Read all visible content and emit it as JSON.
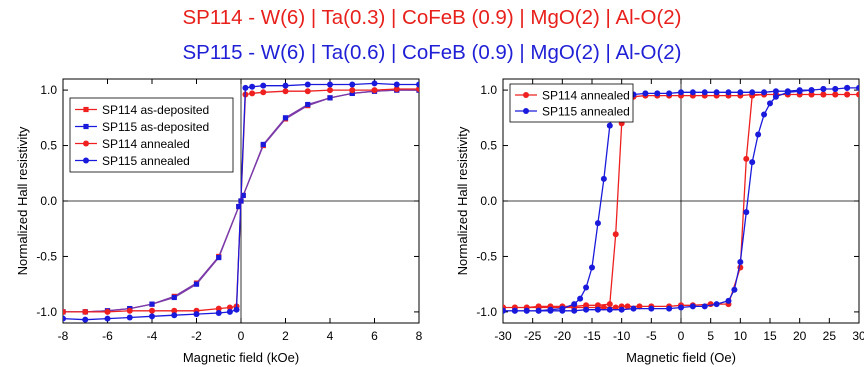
{
  "titles": {
    "line1": "SP114 - W(6) | Ta(0.3) | CoFeB (0.9) | MgO(2) | Al-O(2)",
    "line2": "SP115 - W(6) | Ta(0.6) | CoFeB (0.9) | MgO(2) | Al-O(2)"
  },
  "colors": {
    "red": "#ee2020",
    "blue": "#1a1adc",
    "purple": "#7b3aa8",
    "title_red": "#e8201c",
    "title_blue": "#1f1fd6"
  },
  "chart_data": [
    {
      "type": "line",
      "xlabel": "Magnetic field (kOe)",
      "ylabel": "Normalized Hall resistivity",
      "xlim": [
        -8,
        8
      ],
      "ylim": [
        -1.1,
        1.1
      ],
      "xticks": [
        -8,
        -6,
        -4,
        -2,
        0,
        2,
        4,
        6,
        8
      ],
      "xtick_labels": [
        "-8",
        "-6",
        "-4",
        "-2",
        "0",
        "2",
        "4",
        "6",
        "8"
      ],
      "yticks": [
        -1.0,
        -0.5,
        0.0,
        0.5,
        1.0
      ],
      "ytick_labels": [
        "-1.0",
        "-0.5",
        "0.0",
        "0.5",
        "1.0"
      ],
      "grid": false,
      "legend": "top-left",
      "series": [
        {
          "name": "SP114 as-deposited",
          "marker": "square",
          "color": "red",
          "x": [
            -8,
            -7,
            -6,
            -5,
            -4,
            -3,
            -2,
            -1,
            -0.1,
            0,
            0.1,
            1,
            2,
            3,
            4,
            5,
            6,
            7,
            8
          ],
          "y": [
            -1.0,
            -1.0,
            -0.99,
            -0.97,
            -0.93,
            -0.86,
            -0.74,
            -0.5,
            -0.05,
            0.0,
            0.05,
            0.5,
            0.74,
            0.86,
            0.93,
            0.97,
            0.99,
            1.0,
            1.0
          ]
        },
        {
          "name": "SP115 as-deposited",
          "marker": "square",
          "color": "blue",
          "x": [
            -8,
            -7,
            -6,
            -5,
            -4,
            -3,
            -2,
            -1,
            -0.1,
            0,
            0.1,
            1,
            2,
            3,
            4,
            5,
            6,
            7,
            8
          ],
          "y": [
            -1.0,
            -1.0,
            -0.99,
            -0.97,
            -0.93,
            -0.87,
            -0.75,
            -0.51,
            -0.05,
            0.0,
            0.05,
            0.51,
            0.75,
            0.87,
            0.93,
            0.97,
            0.99,
            1.0,
            1.0
          ]
        },
        {
          "name": "SP114 annealed",
          "marker": "circle",
          "color": "red",
          "x": [
            -8,
            -7,
            -6,
            -5,
            -4,
            -3,
            -2,
            -1,
            -0.5,
            -0.2,
            0.2,
            0.5,
            1,
            2,
            3,
            4,
            5,
            6,
            7,
            8
          ],
          "y": [
            -1.0,
            -1.0,
            -1.0,
            -0.99,
            -0.99,
            -0.99,
            -0.99,
            -0.97,
            -0.96,
            -0.95,
            0.96,
            0.97,
            0.98,
            0.99,
            0.99,
            1.0,
            1.0,
            1.0,
            1.01,
            1.01
          ]
        },
        {
          "name": "SP115 annealed",
          "marker": "circle",
          "color": "blue",
          "x": [
            -8,
            -7,
            -6,
            -5,
            -4,
            -3,
            -2,
            -1,
            -0.5,
            -0.2,
            0.2,
            0.5,
            1,
            2,
            3,
            4,
            5,
            6,
            7,
            8
          ],
          "y": [
            -1.06,
            -1.07,
            -1.06,
            -1.05,
            -1.04,
            -1.03,
            -1.02,
            -1.01,
            -1.0,
            -0.98,
            1.02,
            1.03,
            1.04,
            1.04,
            1.05,
            1.05,
            1.05,
            1.06,
            1.05,
            1.05
          ]
        }
      ]
    },
    {
      "type": "line",
      "xlabel": "Magnetic field (Oe)",
      "ylabel": "Normalized Hall resistivity",
      "xlim": [
        -30,
        30
      ],
      "ylim": [
        -1.1,
        1.1
      ],
      "xticks": [
        -30,
        -25,
        -20,
        -15,
        -10,
        -5,
        0,
        5,
        10,
        15,
        20,
        25,
        30
      ],
      "xtick_labels": [
        "-30",
        "-25",
        "-20",
        "-15",
        "-10",
        "-5",
        "0",
        "5",
        "10",
        "15",
        "20",
        "25",
        "30"
      ],
      "yticks": [
        -1.0,
        -0.5,
        0.0,
        0.5,
        1.0
      ],
      "ytick_labels": [
        "-1.0",
        "-0.5",
        "0.0",
        "0.5",
        "1.0"
      ],
      "grid": false,
      "legend": "top-left",
      "series": [
        {
          "name": "SP114 annealed",
          "marker": "circle",
          "color": "red",
          "x": [
            -30,
            -28,
            -26,
            -24,
            -22,
            -20,
            -18,
            -16,
            -14,
            -13,
            -11,
            -10,
            -9,
            -7,
            -5,
            -2,
            0,
            2,
            5,
            8,
            10,
            11,
            12,
            14,
            16,
            18,
            20,
            22,
            24,
            26,
            28,
            30,
            28,
            26,
            24,
            22,
            20,
            18,
            16,
            14,
            12,
            10,
            8,
            6,
            4,
            2,
            0,
            -2,
            -4,
            -6,
            -8,
            -9,
            -10,
            -11,
            -12,
            -14,
            -16,
            -18,
            -20,
            -22,
            -24,
            -26,
            -28,
            -30
          ],
          "y": [
            -0.96,
            -0.96,
            -0.96,
            -0.96,
            -0.96,
            -0.96,
            -0.96,
            -0.96,
            -0.96,
            -0.96,
            -0.96,
            -0.95,
            -0.95,
            -0.95,
            -0.95,
            -0.95,
            -0.94,
            -0.94,
            -0.93,
            -0.93,
            -0.6,
            0.38,
            0.95,
            0.96,
            0.96,
            0.96,
            0.96,
            0.96,
            0.96,
            0.96,
            0.96,
            0.96,
            0.96,
            0.96,
            0.96,
            0.96,
            0.96,
            0.96,
            0.96,
            0.96,
            0.96,
            0.95,
            0.95,
            0.95,
            0.95,
            0.95,
            0.95,
            0.95,
            0.95,
            0.95,
            0.94,
            0.94,
            0.7,
            -0.3,
            -0.93,
            -0.94,
            -0.94,
            -0.95,
            -0.95,
            -0.95,
            -0.95,
            -0.96,
            -0.96,
            -0.96
          ]
        },
        {
          "name": "SP115 annealed",
          "marker": "circle",
          "color": "blue",
          "x": [
            -30,
            -28,
            -26,
            -24,
            -22,
            -20,
            -18,
            -16,
            -14,
            -12,
            -10,
            -8,
            -5,
            -2,
            0,
            2,
            4,
            6,
            8,
            9,
            10,
            11,
            12,
            13,
            14,
            15,
            16,
            18,
            20,
            22,
            24,
            26,
            28,
            30,
            28,
            26,
            24,
            22,
            20,
            18,
            16,
            14,
            12,
            10,
            8,
            6,
            4,
            2,
            0,
            -2,
            -4,
            -6,
            -8,
            -10,
            -11,
            -12,
            -13,
            -14,
            -15,
            -16,
            -17,
            -18,
            -20,
            -22,
            -24,
            -26,
            -28,
            -30
          ],
          "y": [
            -0.99,
            -0.99,
            -0.99,
            -0.99,
            -0.99,
            -0.99,
            -0.99,
            -0.98,
            -0.98,
            -0.98,
            -0.98,
            -0.97,
            -0.97,
            -0.97,
            -0.96,
            -0.95,
            -0.95,
            -0.93,
            -0.9,
            -0.8,
            -0.55,
            -0.1,
            0.35,
            0.6,
            0.78,
            0.88,
            0.94,
            0.98,
            0.99,
            1.0,
            1.01,
            1.01,
            1.02,
            1.02,
            1.02,
            1.01,
            1.01,
            1.0,
            1.0,
            0.99,
            0.99,
            0.98,
            0.98,
            0.98,
            0.98,
            0.98,
            0.98,
            0.98,
            0.98,
            0.97,
            0.97,
            0.97,
            0.96,
            0.94,
            0.9,
            0.68,
            0.2,
            -0.2,
            -0.6,
            -0.78,
            -0.88,
            -0.93,
            -0.97,
            -0.98,
            -0.99,
            -0.99,
            -0.99,
            -0.99
          ]
        }
      ]
    }
  ]
}
